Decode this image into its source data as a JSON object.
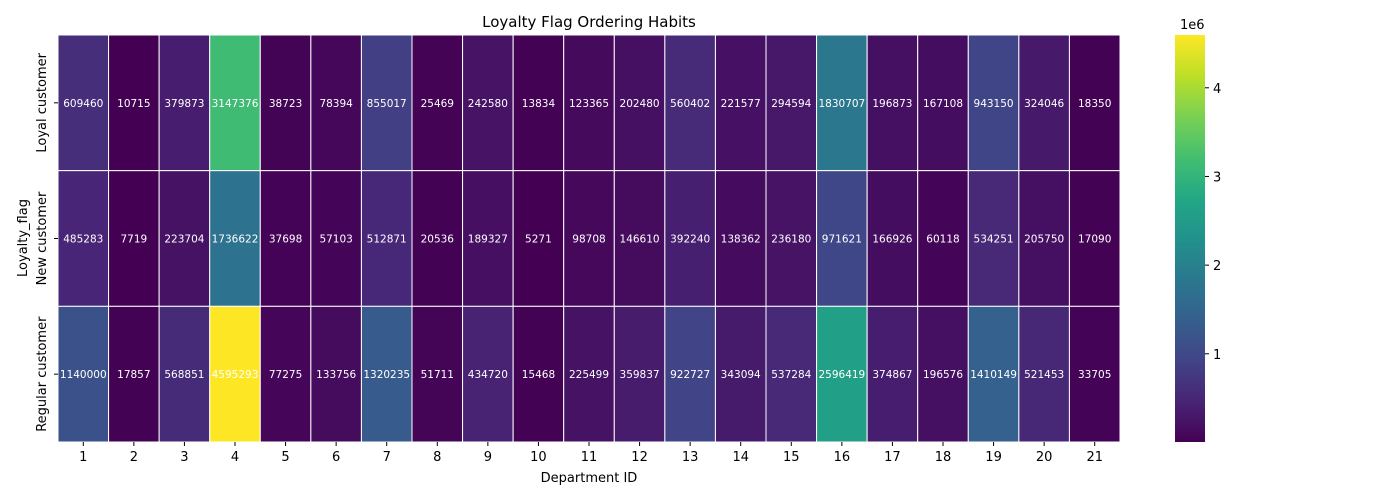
{
  "chart_data": {
    "type": "heatmap",
    "title": "Loyalty Flag Ordering Habits",
    "xlabel": "Department ID",
    "ylabel": "Loyalty_flag",
    "x_categories": [
      "1",
      "2",
      "3",
      "4",
      "5",
      "6",
      "7",
      "8",
      "9",
      "10",
      "11",
      "12",
      "13",
      "14",
      "15",
      "16",
      "17",
      "18",
      "19",
      "20",
      "21"
    ],
    "y_categories": [
      "Loyal customer",
      "New customer",
      "Regular customer"
    ],
    "values": [
      [
        609460,
        10715,
        379873,
        3147376,
        38723,
        78394,
        855017,
        25469,
        242580,
        13834,
        123365,
        202480,
        560402,
        221577,
        294594,
        1830707,
        196873,
        167108,
        943150,
        324046,
        18350
      ],
      [
        485283,
        7719,
        223704,
        1736622,
        37698,
        57103,
        512871,
        20536,
        189327,
        5271,
        98708,
        146610,
        392240,
        138362,
        236180,
        971621,
        166926,
        60118,
        534251,
        205750,
        17090
      ],
      [
        1140000,
        17857,
        568851,
        4595293,
        77275,
        133756,
        1320235,
        51711,
        434720,
        15468,
        225499,
        359837,
        922727,
        343094,
        537284,
        2596419,
        374867,
        196576,
        1410149,
        521453,
        33705
      ]
    ],
    "colormap": "viridis",
    "colorbar": {
      "multiplier_label": "1e6",
      "ticks": [
        1,
        2,
        3,
        4
      ],
      "tick_labels": [
        "1",
        "2",
        "3",
        "4"
      ],
      "scale": 1000000
    },
    "vmin": 5271,
    "vmax": 4595293,
    "cell_border_color": "#ffffff",
    "annotation_color": "#ffffff"
  }
}
